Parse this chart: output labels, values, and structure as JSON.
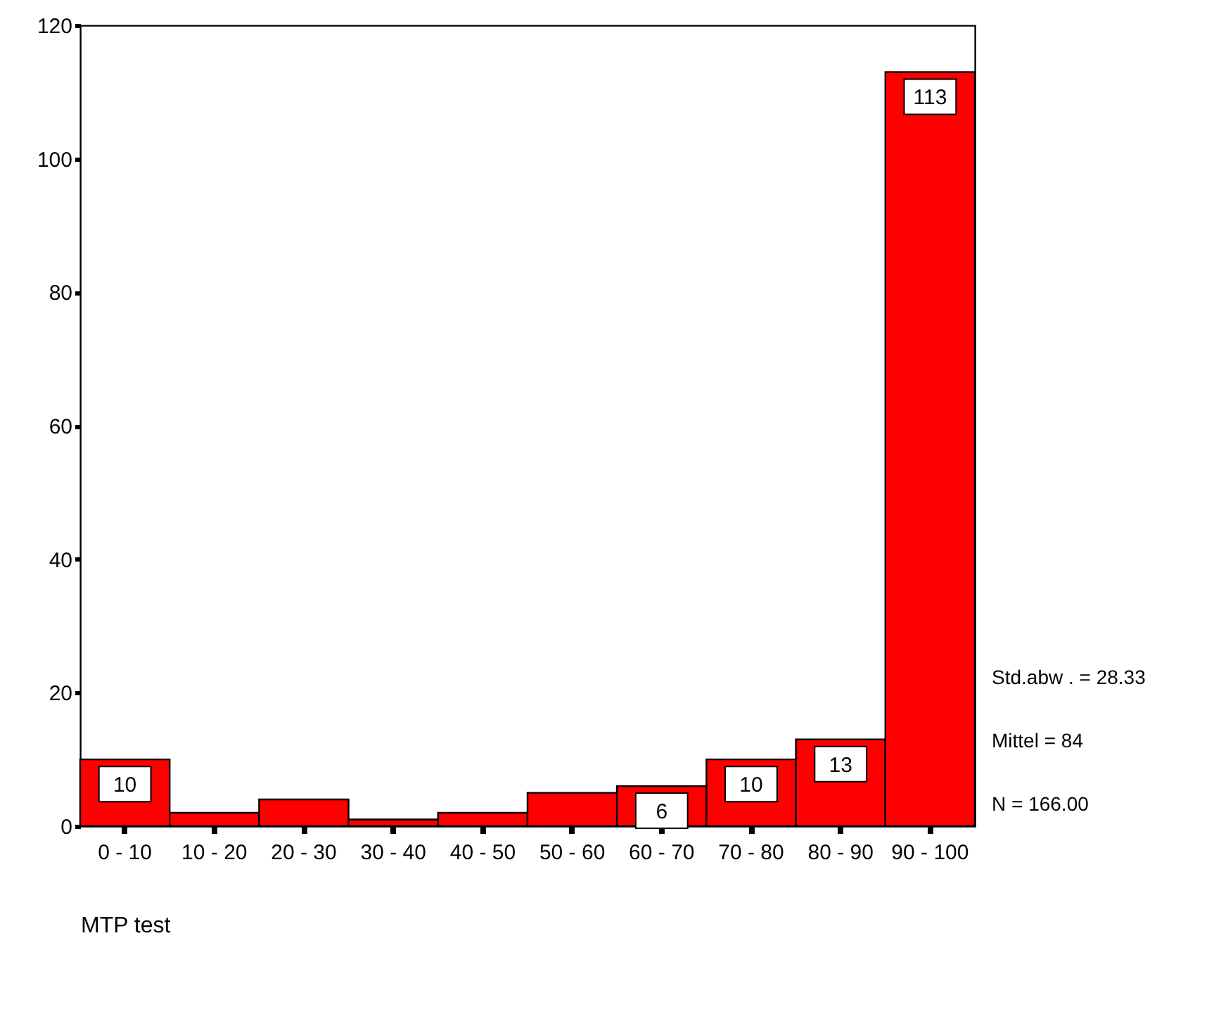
{
  "chart_data": {
    "type": "bar",
    "xlabel": "MTP test",
    "categories": [
      "0 - 10",
      "10 - 20",
      "20 - 30",
      "30 - 40",
      "40 - 50",
      "50 - 60",
      "60 - 70",
      "70 - 80",
      "80 - 90",
      "90 - 100"
    ],
    "values": [
      10,
      2,
      4,
      1,
      2,
      5,
      6,
      10,
      13,
      113
    ],
    "value_labels": [
      "10",
      null,
      null,
      null,
      null,
      null,
      "6",
      "10",
      "13",
      "113"
    ],
    "color": "#ff0000",
    "ylim": [
      0,
      120
    ],
    "yticks": [
      0,
      20,
      40,
      60,
      80,
      100,
      120
    ],
    "grid": false,
    "annotations": [
      "Std.abw . = 28.33",
      "Mittel = 84",
      "N = 166.00"
    ]
  }
}
